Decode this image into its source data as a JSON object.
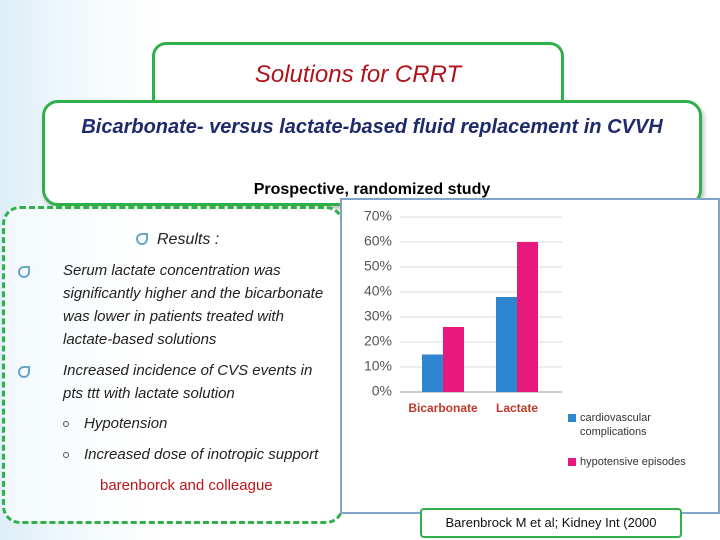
{
  "slide": {
    "title": "Solutions for CRRT",
    "subtitle": "Bicarbonate- versus lactate-based fluid replacement in CVVH",
    "study": "Prospective, randomized study",
    "results_heading": "Results :",
    "bullets": [
      "Serum lactate concentration was significantly higher and the bicarbonate was lower in patients treated with lactate-based solutions",
      "Increased incidence  of CVS events in pts ttt with lactate solution"
    ],
    "sub_bullets": [
      "Hypotension",
      "Increased dose of inotropic support"
    ],
    "note": "barenborck and colleague",
    "citation": "Barenbrock M et al; Kidney Int (2000"
  },
  "chart_data": {
    "type": "bar",
    "categories": [
      "Bicarbonate",
      "Lactate"
    ],
    "series": [
      {
        "name": "cardiovascular complications",
        "color": "#2e86d0",
        "values": [
          15,
          38
        ]
      },
      {
        "name": "hypotensive episodes",
        "color": "#e8197d",
        "values": [
          26,
          60
        ]
      }
    ],
    "ylim": [
      0,
      70
    ],
    "yticks": [
      {
        "value": 0,
        "label": "0%"
      },
      {
        "value": 10,
        "label": "10%"
      },
      {
        "value": 20,
        "label": "20%"
      },
      {
        "value": 30,
        "label": "30%"
      },
      {
        "value": 40,
        "label": "40%"
      },
      {
        "value": 50,
        "label": "50%"
      },
      {
        "value": 60,
        "label": "60%"
      },
      {
        "value": 70,
        "label": "70%"
      }
    ],
    "grid": true,
    "legend": "right"
  }
}
